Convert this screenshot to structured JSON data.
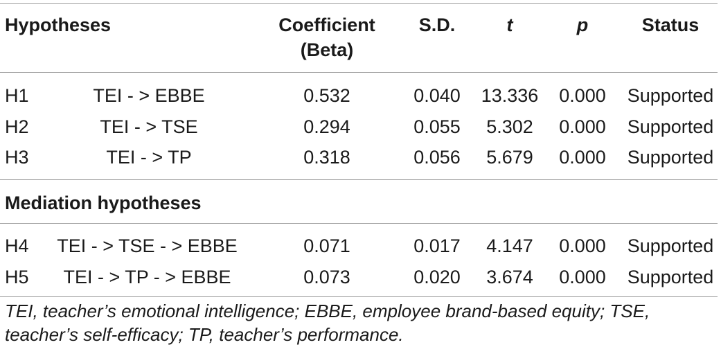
{
  "table": {
    "headers": {
      "hypotheses": "Hypotheses",
      "coefficient_line1": "Coefficient",
      "coefficient_line2": "(Beta)",
      "sd": "S.D.",
      "t": "t",
      "p": "p",
      "status": "Status"
    },
    "rows": [
      {
        "id": "H1",
        "path": "TEI - > EBBE",
        "coef": "0.532",
        "sd": "0.040",
        "t": "13.336",
        "p": "0.000",
        "status": "Supported"
      },
      {
        "id": "H2",
        "path": "TEI - > TSE",
        "coef": "0.294",
        "sd": "0.055",
        "t": "5.302",
        "p": "0.000",
        "status": "Supported"
      },
      {
        "id": "H3",
        "path": "TEI - > TP",
        "coef": "0.318",
        "sd": "0.056",
        "t": "5.679",
        "p": "0.000",
        "status": "Supported"
      }
    ],
    "mediation_title": "Mediation hypotheses",
    "mediation_rows": [
      {
        "id": "H4",
        "path": "TEI - > TSE - > EBBE",
        "coef": "0.071",
        "sd": "0.017",
        "t": "4.147",
        "p": "0.000",
        "status": "Supported"
      },
      {
        "id": "H5",
        "path": "TEI - > TP - > EBBE",
        "coef": "0.073",
        "sd": "0.020",
        "t": "3.674",
        "p": "0.000",
        "status": "Supported"
      }
    ],
    "footnote": "TEI, teacher’s emotional intelligence; EBBE, employee brand-based equity; TSE, teacher’s self-efficacy; TP, teacher’s performance."
  }
}
